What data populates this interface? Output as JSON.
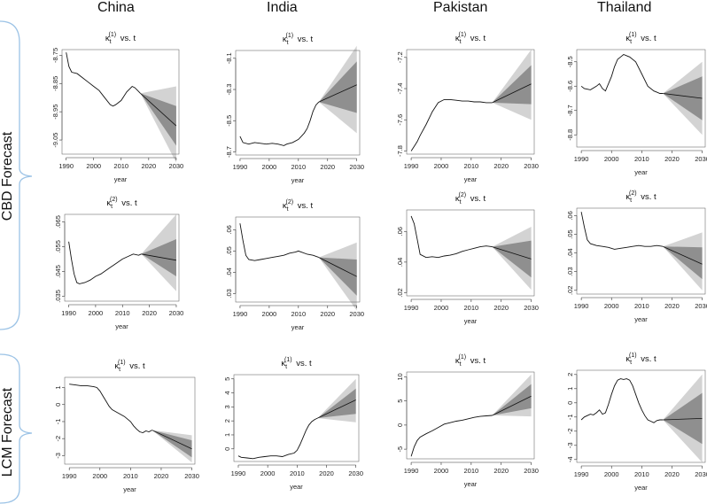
{
  "countries": [
    "China",
    "India",
    "Pakistan",
    "Thailand"
  ],
  "row_labels": {
    "cbd": "CBD Forecast",
    "lcm": "LCM Forecast"
  },
  "style": {
    "band_outer": "#d3d3d3",
    "band_inner": "#8f8f8f",
    "line": "#111111",
    "bracket": "#9cc3e6"
  },
  "chart_data": [
    {
      "type": "line",
      "country": "China",
      "row": "CBD",
      "title": "κ_t^(1) vs. t",
      "xlabel": "year",
      "xticks": [
        1990,
        2000,
        2010,
        2020,
        2030
      ],
      "yticks": [
        -8.75,
        -8.85,
        -8.95,
        -9.05
      ],
      "ylim": [
        -9.1,
        -8.73
      ],
      "xlim": [
        1988.5,
        2031
      ],
      "history": {
        "x": [
          1990,
          1991,
          1992,
          1994,
          1996,
          1998,
          2000,
          2002,
          2004,
          2006,
          2007,
          2008,
          2010,
          2012,
          2014,
          2015,
          2016,
          2017
        ],
        "y": [
          -8.74,
          -8.79,
          -8.81,
          -8.815,
          -8.83,
          -8.845,
          -8.86,
          -8.875,
          -8.9,
          -8.925,
          -8.93,
          -8.925,
          -8.91,
          -8.88,
          -8.86,
          -8.865,
          -8.875,
          -8.885
        ]
      },
      "forecast": {
        "start": 2017,
        "end": 2030,
        "mid_end": -9.0,
        "inner_end": [
          -9.07,
          -8.93
        ],
        "outer_end": [
          -9.13,
          -8.86
        ]
      }
    },
    {
      "type": "line",
      "country": "India",
      "row": "CBD",
      "title": "κ_t^(1) vs. t",
      "xlabel": "year",
      "xticks": [
        1990,
        2000,
        2010,
        2020,
        2030
      ],
      "yticks": [
        -8.1,
        -8.3,
        -8.5,
        -8.7
      ],
      "ylim": [
        -8.72,
        -8.05
      ],
      "xlim": [
        1988.5,
        2031
      ],
      "history": {
        "x": [
          1990,
          1991,
          1993,
          1995,
          1997,
          1999,
          2001,
          2003,
          2005,
          2006,
          2008,
          2010,
          2011,
          2012,
          2013,
          2014,
          2015,
          2016,
          2017
        ],
        "y": [
          -8.6,
          -8.64,
          -8.65,
          -8.64,
          -8.645,
          -8.65,
          -8.645,
          -8.65,
          -8.66,
          -8.65,
          -8.64,
          -8.62,
          -8.6,
          -8.58,
          -8.55,
          -8.5,
          -8.44,
          -8.4,
          -8.38
        ]
      },
      "forecast": {
        "start": 2017,
        "end": 2030,
        "mid_end": -8.27,
        "inner_end": [
          -8.45,
          -8.12
        ],
        "outer_end": [
          -8.58,
          -8.02
        ]
      }
    },
    {
      "type": "line",
      "country": "Pakistan",
      "row": "CBD",
      "title": "κ_t^(1) vs. t",
      "xlabel": "year",
      "xticks": [
        1990,
        2000,
        2010,
        2020,
        2030
      ],
      "yticks": [
        -7.2,
        -7.4,
        -7.6,
        -7.8
      ],
      "ylim": [
        -7.82,
        -7.15
      ],
      "xlim": [
        1988.5,
        2031
      ],
      "history": {
        "x": [
          1990,
          1991,
          1992,
          1993,
          1995,
          1997,
          1999,
          2001,
          2003,
          2005,
          2007,
          2009,
          2011,
          2013,
          2015,
          2017
        ],
        "y": [
          -7.8,
          -7.77,
          -7.74,
          -7.7,
          -7.63,
          -7.55,
          -7.49,
          -7.47,
          -7.47,
          -7.475,
          -7.48,
          -7.48,
          -7.485,
          -7.485,
          -7.49,
          -7.49
        ]
      },
      "forecast": {
        "start": 2017,
        "end": 2030,
        "mid_end": -7.37,
        "inner_end": [
          -7.5,
          -7.25
        ],
        "outer_end": [
          -7.6,
          -7.15
        ]
      }
    },
    {
      "type": "line",
      "country": "Thailand",
      "row": "CBD",
      "title": "κ_t^(1) vs. t",
      "xlabel": "year",
      "xticks": [
        1990,
        2000,
        2010,
        2020,
        2030
      ],
      "yticks": [
        -8.5,
        -8.6,
        -8.7,
        -8.8
      ],
      "ylim": [
        -8.85,
        -8.45
      ],
      "xlim": [
        1988.5,
        2031
      ],
      "history": {
        "x": [
          1990,
          1991,
          1993,
          1995,
          1996,
          1997,
          1998,
          2000,
          2001,
          2002,
          2003,
          2004,
          2005,
          2006,
          2008,
          2010,
          2012,
          2014,
          2015,
          2016,
          2017
        ],
        "y": [
          -8.6,
          -8.61,
          -8.615,
          -8.6,
          -8.59,
          -8.61,
          -8.62,
          -8.56,
          -8.52,
          -8.49,
          -8.48,
          -8.47,
          -8.475,
          -8.48,
          -8.5,
          -8.55,
          -8.6,
          -8.62,
          -8.625,
          -8.63,
          -8.63
        ]
      },
      "forecast": {
        "start": 2017,
        "end": 2030,
        "mid_end": -8.65,
        "inner_end": [
          -8.74,
          -8.56
        ],
        "outer_end": [
          -8.8,
          -8.5
        ]
      }
    },
    {
      "type": "line",
      "country": "China",
      "row": "CBD",
      "title": "κ_t^(2) vs. t",
      "xlabel": "year",
      "xticks": [
        1990,
        2000,
        2010,
        2020,
        2030
      ],
      "yticks": [
        0.035,
        0.045,
        0.055,
        0.065
      ],
      "ylim": [
        0.033,
        0.068
      ],
      "xlim": [
        1988.5,
        2031
      ],
      "history": {
        "x": [
          1990,
          1991,
          1992,
          1993,
          1994,
          1996,
          1998,
          2000,
          2002,
          2004,
          2006,
          2008,
          2010,
          2012,
          2014,
          2016,
          2017
        ],
        "y": [
          0.057,
          0.05,
          0.044,
          0.0405,
          0.04,
          0.0405,
          0.0415,
          0.043,
          0.044,
          0.0455,
          0.047,
          0.0485,
          0.05,
          0.051,
          0.052,
          0.0515,
          0.052
        ]
      },
      "forecast": {
        "start": 2017,
        "end": 2030,
        "mid_end": 0.0495,
        "inner_end": [
          0.043,
          0.058
        ],
        "outer_end": [
          0.037,
          0.068
        ]
      }
    },
    {
      "type": "line",
      "country": "India",
      "row": "CBD",
      "title": "κ_t^(2) vs. t",
      "xlabel": "year",
      "xticks": [
        1990,
        2000,
        2010,
        2020,
        2030
      ],
      "yticks": [
        0.03,
        0.04,
        0.05,
        0.06
      ],
      "ylim": [
        0.026,
        0.066
      ],
      "xlim": [
        1988.5,
        2031
      ],
      "history": {
        "x": [
          1990,
          1991,
          1992,
          1993,
          1995,
          1997,
          1999,
          2001,
          2003,
          2005,
          2007,
          2009,
          2010,
          2011,
          2013,
          2015,
          2017
        ],
        "y": [
          0.063,
          0.055,
          0.048,
          0.046,
          0.0455,
          0.046,
          0.0465,
          0.047,
          0.0475,
          0.048,
          0.049,
          0.0495,
          0.05,
          0.0495,
          0.0485,
          0.048,
          0.047
        ]
      },
      "forecast": {
        "start": 2017,
        "end": 2030,
        "mid_end": 0.038,
        "inner_end": [
          0.029,
          0.046
        ],
        "outer_end": [
          0.022,
          0.054
        ]
      }
    },
    {
      "type": "line",
      "country": "Pakistan",
      "row": "CBD",
      "title": "κ_t^(2) vs. t",
      "xlabel": "year",
      "xticks": [
        1990,
        2000,
        2010,
        2020,
        2030
      ],
      "yticks": [
        0.02,
        0.04,
        0.06
      ],
      "ylim": [
        0.018,
        0.074
      ],
      "xlim": [
        1988.5,
        2031
      ],
      "history": {
        "x": [
          1990,
          1991,
          1992,
          1993,
          1995,
          1997,
          1999,
          2001,
          2003,
          2005,
          2007,
          2009,
          2011,
          2013,
          2015,
          2017
        ],
        "y": [
          0.07,
          0.065,
          0.055,
          0.045,
          0.043,
          0.0435,
          0.043,
          0.044,
          0.0445,
          0.0455,
          0.047,
          0.048,
          0.049,
          0.05,
          0.0505,
          0.05
        ]
      },
      "forecast": {
        "start": 2017,
        "end": 2030,
        "mid_end": 0.042,
        "inner_end": [
          0.03,
          0.054
        ],
        "outer_end": [
          0.022,
          0.063
        ]
      }
    },
    {
      "type": "line",
      "country": "Thailand",
      "row": "CBD",
      "title": "κ_t^(2) vs. t",
      "xlabel": "year",
      "xticks": [
        1990,
        2000,
        2010,
        2020,
        2030
      ],
      "yticks": [
        0.02,
        0.03,
        0.04,
        0.05,
        0.06
      ],
      "ylim": [
        0.018,
        0.064
      ],
      "xlim": [
        1988.5,
        2031
      ],
      "history": {
        "x": [
          1990,
          1991,
          1992,
          1993,
          1995,
          1997,
          1999,
          2001,
          2003,
          2005,
          2007,
          2009,
          2011,
          2013,
          2015,
          2017
        ],
        "y": [
          0.062,
          0.054,
          0.047,
          0.045,
          0.044,
          0.0435,
          0.043,
          0.042,
          0.0425,
          0.043,
          0.0435,
          0.044,
          0.0435,
          0.0435,
          0.044,
          0.0435
        ]
      },
      "forecast": {
        "start": 2017,
        "end": 2030,
        "mid_end": 0.034,
        "inner_end": [
          0.026,
          0.043
        ],
        "outer_end": [
          0.02,
          0.051
        ]
      }
    },
    {
      "type": "line",
      "country": "China",
      "row": "LCM",
      "title": "κ_t^(1) vs. t",
      "xlabel": "year",
      "xticks": [
        1990,
        2000,
        2010,
        2020,
        2030
      ],
      "yticks": [
        1,
        0,
        -1,
        -2,
        -3
      ],
      "ylim": [
        -3.5,
        1.6
      ],
      "xlim": [
        1988.5,
        2031
      ],
      "history": {
        "x": [
          1990,
          1992,
          1994,
          1996,
          1998,
          1999,
          2000,
          2001,
          2002,
          2003,
          2004,
          2006,
          2008,
          2010,
          2011,
          2012,
          2013,
          2014,
          2015,
          2016,
          2017
        ],
        "y": [
          1.2,
          1.15,
          1.1,
          1.1,
          1.05,
          1.0,
          0.8,
          0.5,
          0.2,
          -0.1,
          -0.3,
          -0.5,
          -0.7,
          -1.0,
          -1.25,
          -1.45,
          -1.6,
          -1.65,
          -1.55,
          -1.6,
          -1.5
        ]
      },
      "forecast": {
        "start": 2017,
        "end": 2030,
        "mid_end": -2.6,
        "inner_end": [
          -3.1,
          -2.1
        ],
        "outer_end": [
          -3.4,
          -1.8
        ]
      }
    },
    {
      "type": "line",
      "country": "India",
      "row": "LCM",
      "title": "κ_t^(1) vs. t",
      "xlabel": "year",
      "xticks": [
        1990,
        2000,
        2010,
        2020,
        2030
      ],
      "yticks": [
        5,
        4,
        3,
        2,
        1,
        0
      ],
      "ylim": [
        -0.9,
        5.3
      ],
      "xlim": [
        1988.5,
        2031
      ],
      "history": {
        "x": [
          1990,
          1991,
          1993,
          1995,
          1997,
          1999,
          2001,
          2003,
          2005,
          2007,
          2009,
          2010,
          2011,
          2012,
          2013,
          2014,
          2015,
          2016,
          2017
        ],
        "y": [
          -0.5,
          -0.6,
          -0.65,
          -0.7,
          -0.6,
          -0.55,
          -0.5,
          -0.5,
          -0.55,
          -0.4,
          -0.3,
          -0.1,
          0.3,
          0.8,
          1.3,
          1.7,
          1.95,
          2.1,
          2.2
        ]
      },
      "forecast": {
        "start": 2017,
        "end": 2030,
        "mid_end": 3.5,
        "inner_end": [
          2.5,
          4.3
        ],
        "outer_end": [
          1.9,
          5.0
        ]
      }
    },
    {
      "type": "line",
      "country": "Pakistan",
      "row": "LCM",
      "title": "κ_t^(1) vs. t",
      "xlabel": "year",
      "xticks": [
        1990,
        2000,
        2010,
        2020,
        2030
      ],
      "yticks": [
        10,
        5,
        0,
        -5
      ],
      "ylim": [
        -7,
        11
      ],
      "xlim": [
        1988.5,
        2031
      ],
      "history": {
        "x": [
          1990,
          1991,
          1992,
          1993,
          1995,
          1997,
          1999,
          2001,
          2003,
          2005,
          2007,
          2009,
          2011,
          2013,
          2015,
          2017
        ],
        "y": [
          -6.5,
          -4.5,
          -3.2,
          -2.5,
          -1.8,
          -1.2,
          -0.5,
          0.2,
          0.5,
          0.8,
          1.0,
          1.3,
          1.6,
          1.8,
          1.9,
          2.0
        ]
      },
      "forecast": {
        "start": 2017,
        "end": 2030,
        "mid_end": 6.0,
        "inner_end": [
          3.5,
          8.5
        ],
        "outer_end": [
          1.8,
          10.5
        ]
      }
    },
    {
      "type": "line",
      "country": "Thailand",
      "row": "LCM",
      "title": "κ_t^(1) vs. t",
      "xlabel": "year",
      "xticks": [
        1990,
        2000,
        2010,
        2020,
        2030
      ],
      "yticks": [
        2,
        1,
        0,
        -1,
        -2,
        -3,
        -4
      ],
      "ylim": [
        -4.2,
        2.3
      ],
      "xlim": [
        1988.5,
        2031
      ],
      "history": {
        "x": [
          1990,
          1991,
          1992,
          1993,
          1994,
          1995,
          1996,
          1997,
          1998,
          1999,
          2000,
          2001,
          2002,
          2003,
          2004,
          2005,
          2006,
          2007,
          2008,
          2009,
          2010,
          2011,
          2012,
          2013,
          2014,
          2015,
          2016,
          2017
        ],
        "y": [
          -1.2,
          -1.0,
          -0.9,
          -0.8,
          -0.85,
          -0.7,
          -0.5,
          -0.8,
          -0.7,
          -0.1,
          0.6,
          1.2,
          1.6,
          1.7,
          1.65,
          1.7,
          1.6,
          1.2,
          0.6,
          0.0,
          -0.5,
          -0.9,
          -1.2,
          -1.3,
          -1.4,
          -1.25,
          -1.2,
          -1.2
        ]
      },
      "forecast": {
        "start": 2017,
        "end": 2030,
        "mid_end": -1.1,
        "inner_end": [
          -2.9,
          0.7
        ],
        "outer_end": [
          -4.2,
          2.0
        ]
      }
    }
  ]
}
